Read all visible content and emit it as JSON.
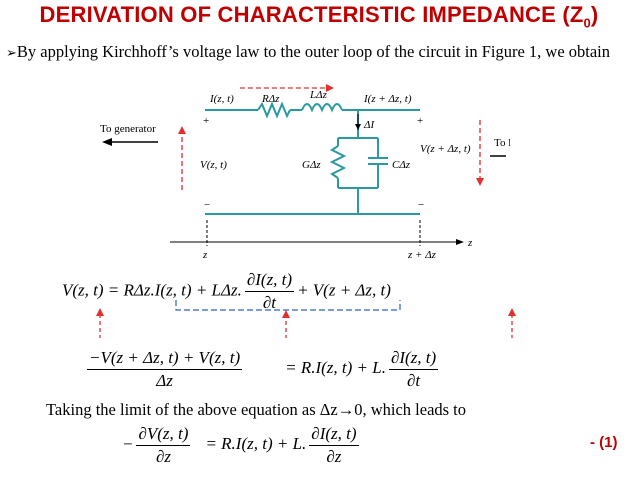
{
  "title": {
    "main": "DERIVATION OF CHARACTERISTIC IMPEDANCE (Z",
    "sub": "0",
    "close": ")"
  },
  "intro": {
    "bullet": "➢",
    "text": "By applying Kirchhoff’s voltage law to the outer loop of the circuit in Figure 1, we obtain"
  },
  "circuit": {
    "i_left": "I(z, t)",
    "r": "RΔz",
    "l": "LΔz",
    "i_right": "I(z + Δz, t)",
    "plus_left": "+",
    "plus_right": "+",
    "to_generator": "To generator",
    "to_load": "To load",
    "v_left": "V(z, t)",
    "delta_i": "ΔI",
    "g": "GΔz",
    "c": "CΔz",
    "v_right": "V(z + Δz, t)",
    "minus_left": "−",
    "minus_right": "−",
    "z_label": "z",
    "z_dz_label": "z + Δz",
    "axis_z": "z"
  },
  "eq1": {
    "lhs": "V(z, t) = RΔz.I(z, t) + LΔz.",
    "num": "∂I(z, t)",
    "den": "∂t",
    "rhs": "+ V(z + Δz, t)"
  },
  "eq2": {
    "num1": "−V(z + Δz, t) + V(z, t)",
    "den1": "Δz",
    "mid": "= R.I(z, t) + L.",
    "num2": "∂I(z, t)",
    "den2": "∂t"
  },
  "limit_text": "Taking the limit of the above equation as Δz→0, which leads to",
  "eq3": {
    "neg": "−",
    "num1": "∂V(z, t)",
    "den1": "∂z",
    "mid": "= R.I(z, t) + L.",
    "num2": "∂I(z, t)",
    "den2": "∂z"
  },
  "eq_tag": "- (1)",
  "colors": {
    "title": "#c00000",
    "arrows": "#e03030",
    "dashes": "#3060c0",
    "wire": "#2a9aa0"
  }
}
